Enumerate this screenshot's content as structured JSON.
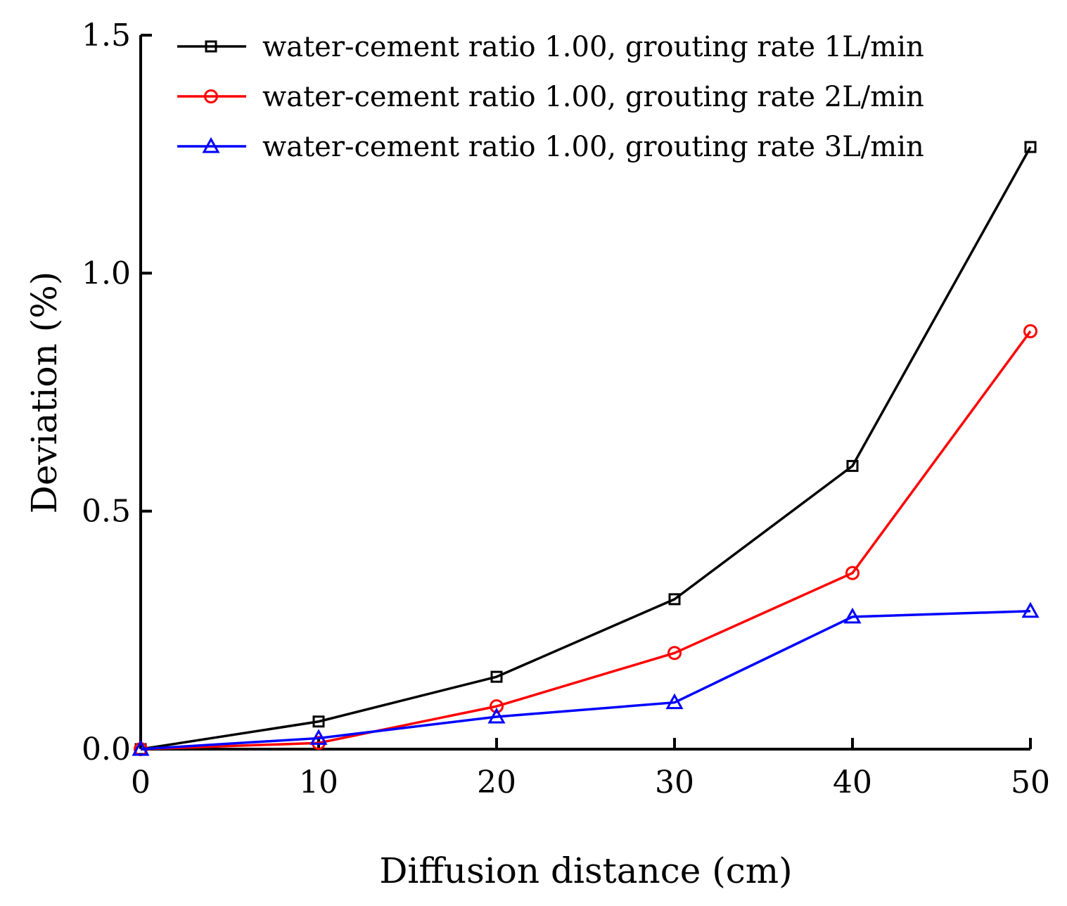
{
  "chart_data": {
    "type": "line",
    "title": "",
    "xlabel": "Diffusion distance (cm)",
    "ylabel": "Deviation (%)",
    "xlim": [
      0,
      50
    ],
    "ylim": [
      0,
      1.5
    ],
    "xticks": [
      "0",
      "10",
      "20",
      "30",
      "40",
      "50"
    ],
    "yticks": [
      "0.0",
      "0.5",
      "1.0",
      "1.5"
    ],
    "grid": false,
    "legend_position": "top",
    "x": [
      0,
      10,
      20,
      30,
      40,
      50
    ],
    "series": [
      {
        "name": "water-cement ratio  1.00, grouting rate  1L/min",
        "color": "#000000",
        "marker": "square",
        "values": [
          0.0,
          0.058,
          0.152,
          0.315,
          0.595,
          1.265
        ]
      },
      {
        "name": "water-cement ratio  1.00, grouting rate  2L/min",
        "color": "#ff0000",
        "marker": "circle",
        "values": [
          0.0,
          0.013,
          0.09,
          0.202,
          0.37,
          0.878
        ]
      },
      {
        "name": "water-cement ratio  1.00, grouting rate  3L/min",
        "color": "#0000ff",
        "marker": "triangle",
        "values": [
          0.0,
          0.023,
          0.068,
          0.098,
          0.278,
          0.29
        ]
      }
    ]
  }
}
